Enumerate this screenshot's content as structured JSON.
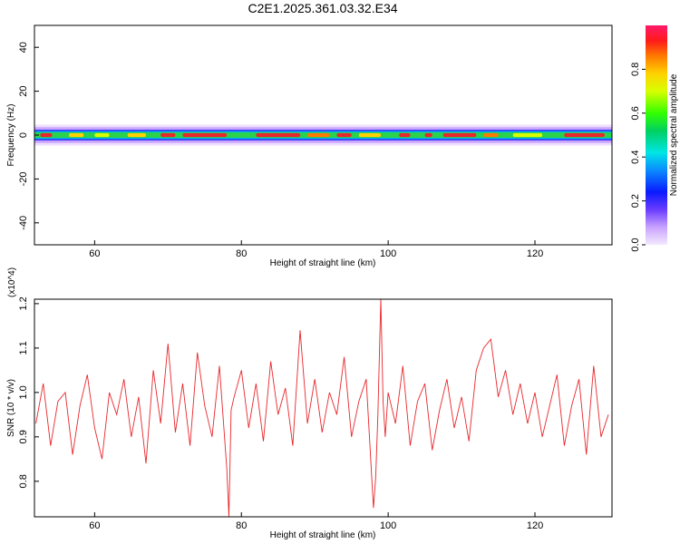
{
  "title": "C2E1.2025.361.03.32.E34",
  "chart_data": [
    {
      "type": "heatmap",
      "title": "C2E1.2025.361.03.32.E34",
      "xlabel": "Height of straight line (km)",
      "ylabel": "Frequency (Hz)",
      "xlim": [
        51.8,
        130.5
      ],
      "ylim": [
        -50,
        50
      ],
      "xticks": [
        "60",
        "80",
        "100",
        "120"
      ],
      "yticks": [
        "40",
        "20",
        "0",
        "-20",
        "-40"
      ],
      "xtick_values": [
        60,
        80,
        100,
        120
      ],
      "ytick_values": [
        40,
        20,
        0,
        -20,
        -40
      ],
      "grid": false,
      "band_center_hz": 0,
      "band_halfwidth_hz": 3,
      "colorbar": {
        "label": "Normalized spectral amplitude",
        "range": [
          0.0,
          1.0
        ],
        "ticks": [
          "0.0",
          "0.2",
          "0.4",
          "0.6",
          "0.8"
        ],
        "tick_values": [
          0.0,
          0.2,
          0.4,
          0.6,
          0.8
        ]
      }
    },
    {
      "type": "line",
      "xlabel": "Height of straight line (km)",
      "ylabel": "SNR (10 * v/v)",
      "yscale_label": "(x10^4)",
      "xlim": [
        51.8,
        130.5
      ],
      "ylim": [
        0.72,
        1.21
      ],
      "xticks": [
        "60",
        "80",
        "100",
        "120"
      ],
      "yticks": [
        "1.2",
        "1.1",
        "1.0",
        "0.9",
        "0.8"
      ],
      "xtick_values": [
        60,
        80,
        100,
        120
      ],
      "ytick_values": [
        1.2,
        1.1,
        1.0,
        0.9,
        0.8
      ],
      "grid": false,
      "series": [
        {
          "color": "#e8262b",
          "x": [
            52,
            53,
            54,
            55,
            56,
            57,
            58,
            59,
            60,
            61,
            62,
            63,
            64,
            65,
            66,
            67,
            68,
            69,
            70,
            71,
            72,
            73,
            74,
            75,
            76,
            77,
            78,
            78.3,
            78.6,
            79,
            80,
            81,
            82,
            83,
            84,
            85,
            86,
            87,
            88,
            89,
            90,
            91,
            92,
            93,
            94,
            95,
            96,
            97,
            98,
            98.3,
            98.6,
            99,
            99.3,
            99.6,
            100,
            101,
            102,
            103,
            104,
            105,
            106,
            107,
            108,
            109,
            110,
            111,
            112,
            113,
            114,
            115,
            116,
            117,
            118,
            119,
            120,
            121,
            122,
            123,
            124,
            125,
            126,
            127,
            128,
            129,
            130
          ],
          "y": [
            0.93,
            1.02,
            0.88,
            0.98,
            1.0,
            0.86,
            0.97,
            1.04,
            0.92,
            0.85,
            1.0,
            0.95,
            1.03,
            0.9,
            0.99,
            0.84,
            1.05,
            0.93,
            1.11,
            0.91,
            1.02,
            0.88,
            1.09,
            0.97,
            0.9,
            1.06,
            0.83,
            0.72,
            0.96,
            0.99,
            1.05,
            0.92,
            1.02,
            0.89,
            1.07,
            0.95,
            1.01,
            0.88,
            1.14,
            0.93,
            1.03,
            0.91,
            1.0,
            0.95,
            1.08,
            0.9,
            0.98,
            1.03,
            0.74,
            0.81,
            0.95,
            1.21,
            0.98,
            0.9,
            1.0,
            0.93,
            1.06,
            0.88,
            0.98,
            1.02,
            0.87,
            0.96,
            1.03,
            0.92,
            0.99,
            0.89,
            1.05,
            1.1,
            1.12,
            0.99,
            1.05,
            0.95,
            1.02,
            0.93,
            1.0,
            0.9,
            0.97,
            1.04,
            0.88,
            0.97,
            1.03,
            0.86,
            1.06,
            0.9,
            0.95
          ]
        }
      ]
    }
  ]
}
